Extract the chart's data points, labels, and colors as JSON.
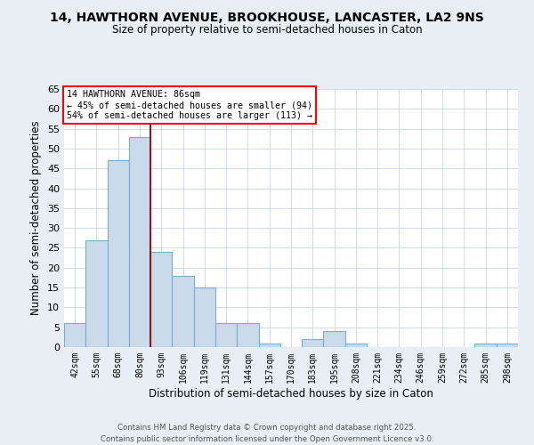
{
  "title1": "14, HAWTHORN AVENUE, BROOKHOUSE, LANCASTER, LA2 9NS",
  "title2": "Size of property relative to semi-detached houses in Caton",
  "xlabel": "Distribution of semi-detached houses by size in Caton",
  "ylabel": "Number of semi-detached properties",
  "categories": [
    "42sqm",
    "55sqm",
    "68sqm",
    "80sqm",
    "93sqm",
    "106sqm",
    "119sqm",
    "131sqm",
    "144sqm",
    "157sqm",
    "170sqm",
    "183sqm",
    "195sqm",
    "208sqm",
    "221sqm",
    "234sqm",
    "246sqm",
    "259sqm",
    "272sqm",
    "285sqm",
    "298sqm"
  ],
  "values": [
    6,
    27,
    47,
    53,
    24,
    18,
    15,
    6,
    6,
    1,
    0,
    2,
    4,
    1,
    0,
    0,
    0,
    0,
    0,
    1,
    1
  ],
  "bar_color": "#c9daea",
  "bar_edge_color": "#7aaec8",
  "property_bin_index": 3,
  "redline_label": "14 HAWTHORN AVENUE: 86sqm",
  "annotation_line1": "← 45% of semi-detached houses are smaller (94)",
  "annotation_line2": "54% of semi-detached houses are larger (113) →",
  "ylim": [
    0,
    65
  ],
  "yticks": [
    0,
    5,
    10,
    15,
    20,
    25,
    30,
    35,
    40,
    45,
    50,
    55,
    60,
    65
  ],
  "footer1": "Contains HM Land Registry data © Crown copyright and database right 2025.",
  "footer2": "Contains public sector information licensed under the Open Government Licence v3.0.",
  "bg_color": "#e8eef4",
  "plot_bg_color": "#ffffff",
  "redline_color": "#8b1a1a"
}
